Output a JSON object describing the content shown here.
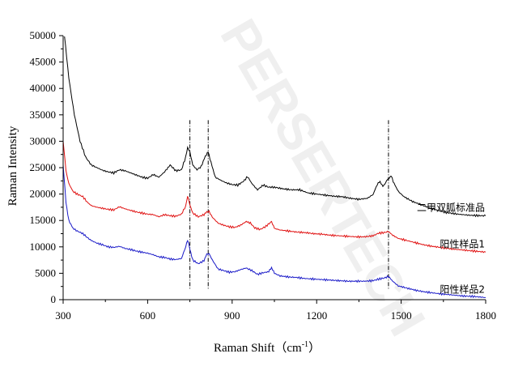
{
  "chart_data": {
    "type": "line",
    "watermark": "PERSERTECH",
    "xlabel": "Raman Shift（cm",
    "xlabel_sup": "-1",
    "xlabel_tail": "）",
    "ylabel": "Raman Intensity",
    "xlim": [
      300,
      1800
    ],
    "ylim": [
      0,
      50000
    ],
    "xticks": [
      300,
      600,
      900,
      1200,
      1500,
      1800
    ],
    "yticks": [
      0,
      5000,
      10000,
      15000,
      20000,
      25000,
      30000,
      35000,
      40000,
      45000,
      50000
    ],
    "reference_lines": [
      750,
      815,
      1455
    ],
    "series": [
      {
        "name": "二甲双胍标准品",
        "color": "#000000",
        "points": [
          [
            305,
            50000
          ],
          [
            320,
            42000
          ],
          [
            340,
            35000
          ],
          [
            360,
            30000
          ],
          [
            380,
            27000
          ],
          [
            400,
            25500
          ],
          [
            420,
            25000
          ],
          [
            440,
            24500
          ],
          [
            460,
            24200
          ],
          [
            480,
            24000
          ],
          [
            500,
            24600
          ],
          [
            520,
            24400
          ],
          [
            540,
            24000
          ],
          [
            560,
            23600
          ],
          [
            580,
            23200
          ],
          [
            600,
            23000
          ],
          [
            620,
            23700
          ],
          [
            640,
            23200
          ],
          [
            660,
            24200
          ],
          [
            680,
            25500
          ],
          [
            700,
            24400
          ],
          [
            720,
            24600
          ],
          [
            735,
            27000
          ],
          [
            742,
            28800
          ],
          [
            750,
            28000
          ],
          [
            760,
            25500
          ],
          [
            775,
            24600
          ],
          [
            790,
            25200
          ],
          [
            805,
            27200
          ],
          [
            815,
            28000
          ],
          [
            825,
            26000
          ],
          [
            840,
            23200
          ],
          [
            860,
            22600
          ],
          [
            880,
            22100
          ],
          [
            900,
            21800
          ],
          [
            920,
            21700
          ],
          [
            940,
            22400
          ],
          [
            955,
            23300
          ],
          [
            970,
            22000
          ],
          [
            990,
            20800
          ],
          [
            1010,
            21700
          ],
          [
            1030,
            21300
          ],
          [
            1050,
            21300
          ],
          [
            1080,
            21000
          ],
          [
            1110,
            20800
          ],
          [
            1140,
            20800
          ],
          [
            1170,
            20200
          ],
          [
            1200,
            20000
          ],
          [
            1230,
            19800
          ],
          [
            1260,
            19600
          ],
          [
            1290,
            19500
          ],
          [
            1320,
            19200
          ],
          [
            1350,
            19000
          ],
          [
            1380,
            19200
          ],
          [
            1400,
            19900
          ],
          [
            1415,
            21800
          ],
          [
            1425,
            22400
          ],
          [
            1435,
            21400
          ],
          [
            1445,
            22200
          ],
          [
            1455,
            23000
          ],
          [
            1465,
            23400
          ],
          [
            1475,
            22000
          ],
          [
            1490,
            20500
          ],
          [
            1510,
            19500
          ],
          [
            1540,
            18600
          ],
          [
            1570,
            18000
          ],
          [
            1600,
            17400
          ],
          [
            1630,
            16900
          ],
          [
            1660,
            16500
          ],
          [
            1700,
            16200
          ],
          [
            1740,
            16000
          ],
          [
            1780,
            15900
          ],
          [
            1800,
            15900
          ]
        ]
      },
      {
        "name": "阳性样品1",
        "color": "#e01010",
        "points": [
          [
            300,
            30000
          ],
          [
            310,
            24500
          ],
          [
            320,
            22000
          ],
          [
            335,
            20500
          ],
          [
            350,
            20000
          ],
          [
            370,
            19500
          ],
          [
            385,
            18500
          ],
          [
            400,
            17800
          ],
          [
            420,
            17500
          ],
          [
            440,
            17300
          ],
          [
            460,
            17100
          ],
          [
            480,
            17000
          ],
          [
            500,
            17600
          ],
          [
            520,
            17200
          ],
          [
            540,
            16900
          ],
          [
            560,
            16600
          ],
          [
            580,
            16400
          ],
          [
            600,
            16200
          ],
          [
            620,
            16100
          ],
          [
            640,
            15700
          ],
          [
            660,
            16100
          ],
          [
            680,
            15900
          ],
          [
            700,
            15800
          ],
          [
            720,
            16200
          ],
          [
            735,
            17700
          ],
          [
            742,
            19600
          ],
          [
            750,
            18000
          ],
          [
            760,
            16400
          ],
          [
            780,
            15700
          ],
          [
            800,
            16100
          ],
          [
            810,
            16600
          ],
          [
            818,
            16700
          ],
          [
            830,
            15600
          ],
          [
            850,
            14500
          ],
          [
            870,
            14100
          ],
          [
            890,
            13800
          ],
          [
            910,
            13700
          ],
          [
            930,
            14100
          ],
          [
            950,
            14800
          ],
          [
            965,
            14500
          ],
          [
            980,
            13600
          ],
          [
            1000,
            13300
          ],
          [
            1020,
            13900
          ],
          [
            1040,
            14800
          ],
          [
            1050,
            13500
          ],
          [
            1070,
            13200
          ],
          [
            1100,
            13000
          ],
          [
            1130,
            12800
          ],
          [
            1160,
            12700
          ],
          [
            1190,
            12500
          ],
          [
            1220,
            12400
          ],
          [
            1250,
            12200
          ],
          [
            1280,
            12100
          ],
          [
            1310,
            12000
          ],
          [
            1340,
            11900
          ],
          [
            1370,
            11900
          ],
          [
            1400,
            12100
          ],
          [
            1420,
            12600
          ],
          [
            1440,
            12700
          ],
          [
            1455,
            12900
          ],
          [
            1470,
            12200
          ],
          [
            1490,
            11600
          ],
          [
            1520,
            11200
          ],
          [
            1550,
            10800
          ],
          [
            1580,
            10400
          ],
          [
            1610,
            10100
          ],
          [
            1640,
            9900
          ],
          [
            1680,
            9600
          ],
          [
            1720,
            9400
          ],
          [
            1760,
            9200
          ],
          [
            1800,
            9000
          ]
        ]
      },
      {
        "name": "阳性样品2",
        "color": "#1a1ac8",
        "points": [
          [
            300,
            25500
          ],
          [
            310,
            18500
          ],
          [
            320,
            15000
          ],
          [
            335,
            13500
          ],
          [
            350,
            13000
          ],
          [
            370,
            12500
          ],
          [
            385,
            11800
          ],
          [
            400,
            11200
          ],
          [
            420,
            10700
          ],
          [
            440,
            10400
          ],
          [
            460,
            10000
          ],
          [
            480,
            9900
          ],
          [
            500,
            10100
          ],
          [
            520,
            9700
          ],
          [
            540,
            9500
          ],
          [
            560,
            9200
          ],
          [
            580,
            9000
          ],
          [
            600,
            8800
          ],
          [
            620,
            8500
          ],
          [
            640,
            8100
          ],
          [
            660,
            8000
          ],
          [
            680,
            7700
          ],
          [
            700,
            7600
          ],
          [
            720,
            7800
          ],
          [
            735,
            10000
          ],
          [
            742,
            11300
          ],
          [
            750,
            9600
          ],
          [
            760,
            7500
          ],
          [
            780,
            6800
          ],
          [
            800,
            7400
          ],
          [
            810,
            8600
          ],
          [
            818,
            8700
          ],
          [
            830,
            7500
          ],
          [
            850,
            5800
          ],
          [
            870,
            5500
          ],
          [
            890,
            5200
          ],
          [
            910,
            5300
          ],
          [
            930,
            5700
          ],
          [
            950,
            6000
          ],
          [
            970,
            5500
          ],
          [
            990,
            4800
          ],
          [
            1010,
            5100
          ],
          [
            1030,
            5300
          ],
          [
            1040,
            6100
          ],
          [
            1050,
            5000
          ],
          [
            1070,
            4500
          ],
          [
            1100,
            4300
          ],
          [
            1130,
            4200
          ],
          [
            1160,
            4000
          ],
          [
            1190,
            3900
          ],
          [
            1220,
            3800
          ],
          [
            1250,
            3700
          ],
          [
            1280,
            3600
          ],
          [
            1310,
            3500
          ],
          [
            1340,
            3500
          ],
          [
            1370,
            3500
          ],
          [
            1400,
            3600
          ],
          [
            1420,
            3900
          ],
          [
            1440,
            4100
          ],
          [
            1455,
            4400
          ],
          [
            1470,
            3500
          ],
          [
            1490,
            2600
          ],
          [
            1520,
            2200
          ],
          [
            1550,
            1800
          ],
          [
            1580,
            1500
          ],
          [
            1610,
            1300
          ],
          [
            1640,
            1100
          ],
          [
            1680,
            900
          ],
          [
            1720,
            700
          ],
          [
            1760,
            600
          ],
          [
            1800,
            400
          ]
        ]
      }
    ]
  }
}
